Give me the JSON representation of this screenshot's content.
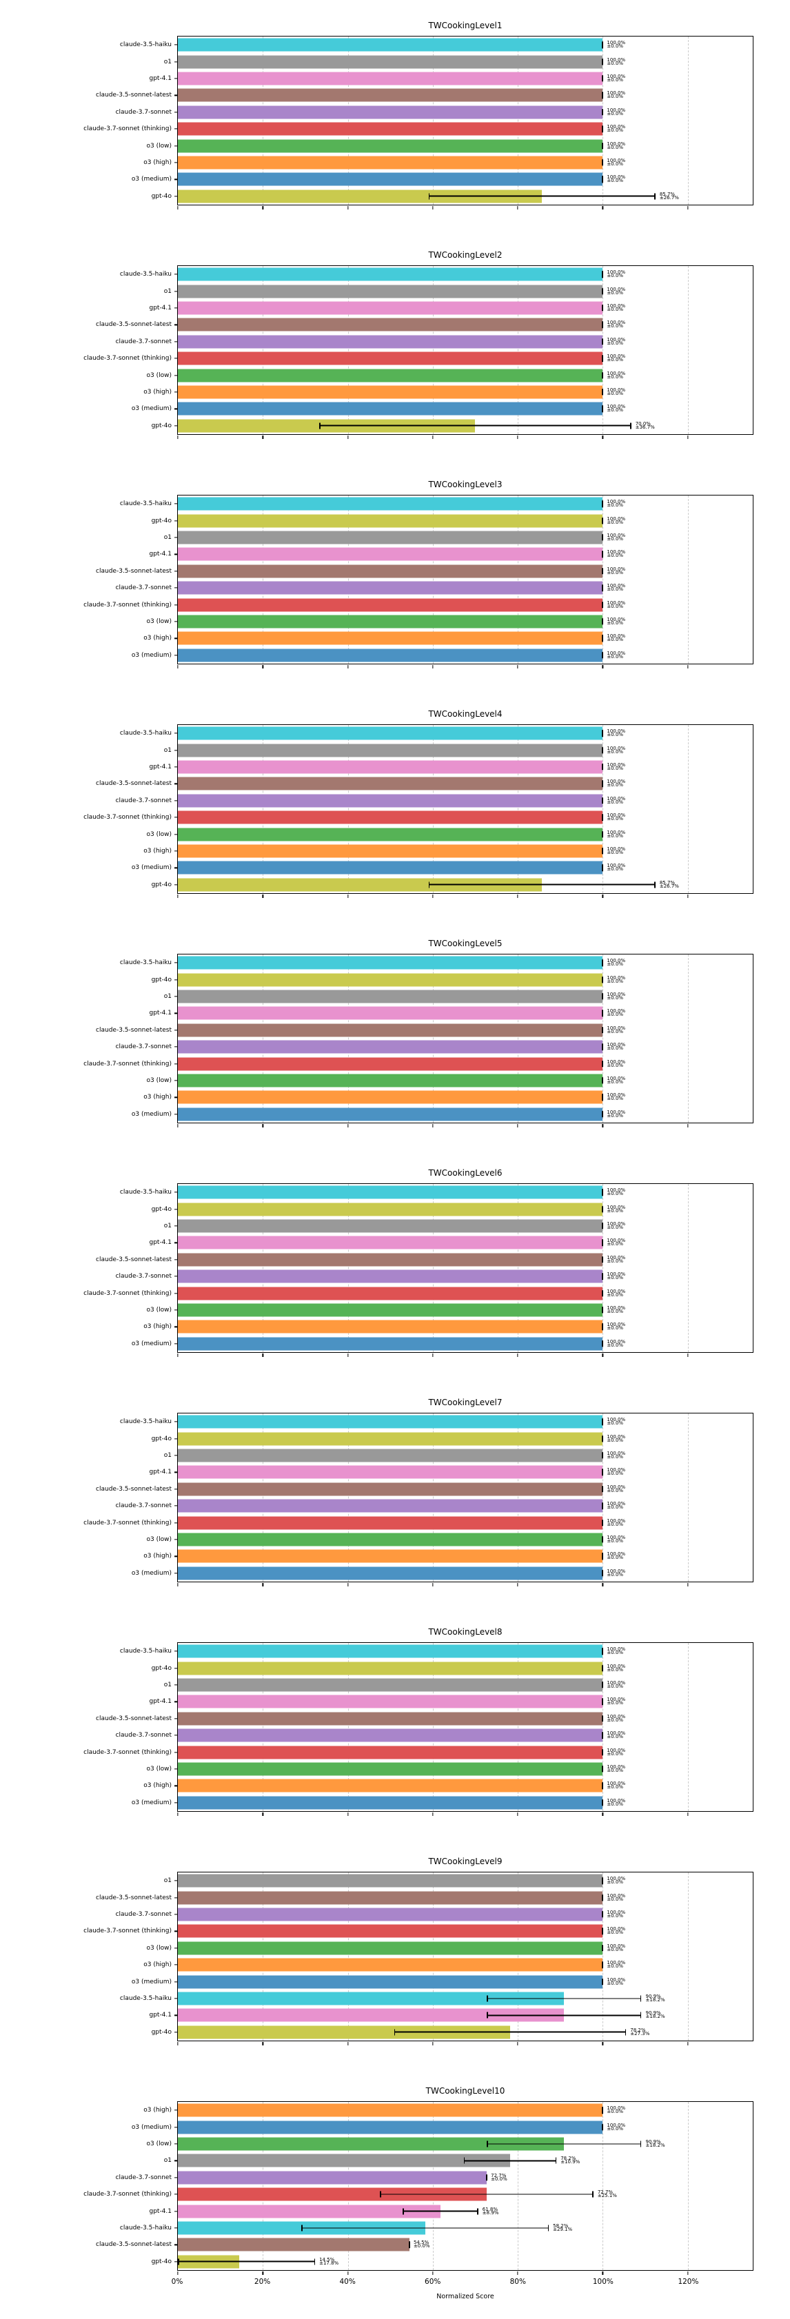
{
  "page": {
    "background": "#ffffff"
  },
  "xaxis": {
    "label": "Normalized Score",
    "tick_labels": [
      "0%",
      "20%",
      "40%",
      "60%",
      "80%",
      "100%",
      "120%"
    ],
    "tick_values": [
      0,
      20,
      40,
      60,
      80,
      100,
      120
    ],
    "max": 135.3,
    "grid_color": "#cbcbcb"
  },
  "colors": {
    "claude-3.5-haiku": "#45cbd9",
    "o1": "#999999",
    "gpt-4.1": "#e892ce",
    "claude-3.5-sonnet-latest": "#a3786f",
    "claude-3.7-sonnet": "#a985ca",
    "claude-3.7-sonnet (thinking)": "#de5253",
    "o3 (low)": "#56b356",
    "o3 (high)": "#ff993e",
    "o3 (medium)": "#4b92c3",
    "gpt-4o": "#c9ca4e"
  },
  "chart_data": [
    {
      "type": "bar",
      "title": "TWCookingLevel1",
      "xlabel": "Normalized Score",
      "xlim": [
        0,
        135.3
      ],
      "categories": [
        "claude-3.5-haiku",
        "o1",
        "gpt-4.1",
        "claude-3.5-sonnet-latest",
        "claude-3.7-sonnet",
        "claude-3.7-sonnet (thinking)",
        "o3 (low)",
        "o3 (high)",
        "o3 (medium)",
        "gpt-4o"
      ],
      "values": [
        100.0,
        100.0,
        100.0,
        100.0,
        100.0,
        100.0,
        100.0,
        100.0,
        100.0,
        85.7
      ],
      "errors": [
        0.0,
        0.0,
        0.0,
        0.0,
        0.0,
        0.0,
        0.0,
        0.0,
        0.0,
        26.7
      ],
      "value_labels": [
        "100.0%",
        "100.0%",
        "100.0%",
        "100.0%",
        "100.0%",
        "100.0%",
        "100.0%",
        "100.0%",
        "100.0%",
        "85.7%"
      ],
      "error_labels": [
        "±0.0%",
        "±0.0%",
        "±0.0%",
        "±0.0%",
        "±0.0%",
        "±0.0%",
        "±0.0%",
        "±0.0%",
        "±0.0%",
        "±26.7%"
      ]
    },
    {
      "type": "bar",
      "title": "TWCookingLevel2",
      "xlabel": "Normalized Score",
      "xlim": [
        0,
        135.3
      ],
      "categories": [
        "claude-3.5-haiku",
        "o1",
        "gpt-4.1",
        "claude-3.5-sonnet-latest",
        "claude-3.7-sonnet",
        "claude-3.7-sonnet (thinking)",
        "o3 (low)",
        "o3 (high)",
        "o3 (medium)",
        "gpt-4o"
      ],
      "values": [
        100.0,
        100.0,
        100.0,
        100.0,
        100.0,
        100.0,
        100.0,
        100.0,
        100.0,
        70.0
      ],
      "errors": [
        0.0,
        0.0,
        0.0,
        0.0,
        0.0,
        0.0,
        0.0,
        0.0,
        0.0,
        36.7
      ],
      "value_labels": [
        "100.0%",
        "100.0%",
        "100.0%",
        "100.0%",
        "100.0%",
        "100.0%",
        "100.0%",
        "100.0%",
        "100.0%",
        "70.0%"
      ],
      "error_labels": [
        "±0.0%",
        "±0.0%",
        "±0.0%",
        "±0.0%",
        "±0.0%",
        "±0.0%",
        "±0.0%",
        "±0.0%",
        "±0.0%",
        "±36.7%"
      ]
    },
    {
      "type": "bar",
      "title": "TWCookingLevel3",
      "xlabel": "Normalized Score",
      "xlim": [
        0,
        135.3
      ],
      "categories": [
        "claude-3.5-haiku",
        "gpt-4o",
        "o1",
        "gpt-4.1",
        "claude-3.5-sonnet-latest",
        "claude-3.7-sonnet",
        "claude-3.7-sonnet (thinking)",
        "o3 (low)",
        "o3 (high)",
        "o3 (medium)"
      ],
      "values": [
        100.0,
        100.0,
        100.0,
        100.0,
        100.0,
        100.0,
        100.0,
        100.0,
        100.0,
        100.0
      ],
      "errors": [
        0.0,
        0.0,
        0.0,
        0.0,
        0.0,
        0.0,
        0.0,
        0.0,
        0.0,
        0.0
      ],
      "value_labels": [
        "100.0%",
        "100.0%",
        "100.0%",
        "100.0%",
        "100.0%",
        "100.0%",
        "100.0%",
        "100.0%",
        "100.0%",
        "100.0%"
      ],
      "error_labels": [
        "±0.0%",
        "±0.0%",
        "±0.0%",
        "±0.0%",
        "±0.0%",
        "±0.0%",
        "±0.0%",
        "±0.0%",
        "±0.0%",
        "±0.0%"
      ]
    },
    {
      "type": "bar",
      "title": "TWCookingLevel4",
      "xlabel": "Normalized Score",
      "xlim": [
        0,
        135.3
      ],
      "categories": [
        "claude-3.5-haiku",
        "o1",
        "gpt-4.1",
        "claude-3.5-sonnet-latest",
        "claude-3.7-sonnet",
        "claude-3.7-sonnet (thinking)",
        "o3 (low)",
        "o3 (high)",
        "o3 (medium)",
        "gpt-4o"
      ],
      "values": [
        100.0,
        100.0,
        100.0,
        100.0,
        100.0,
        100.0,
        100.0,
        100.0,
        100.0,
        85.7
      ],
      "errors": [
        0.0,
        0.0,
        0.0,
        0.0,
        0.0,
        0.0,
        0.0,
        0.0,
        0.0,
        26.7
      ],
      "value_labels": [
        "100.0%",
        "100.0%",
        "100.0%",
        "100.0%",
        "100.0%",
        "100.0%",
        "100.0%",
        "100.0%",
        "100.0%",
        "85.7%"
      ],
      "error_labels": [
        "±0.0%",
        "±0.0%",
        "±0.0%",
        "±0.0%",
        "±0.0%",
        "±0.0%",
        "±0.0%",
        "±0.0%",
        "±0.0%",
        "±26.7%"
      ]
    },
    {
      "type": "bar",
      "title": "TWCookingLevel5",
      "xlabel": "Normalized Score",
      "xlim": [
        0,
        135.3
      ],
      "categories": [
        "claude-3.5-haiku",
        "gpt-4o",
        "o1",
        "gpt-4.1",
        "claude-3.5-sonnet-latest",
        "claude-3.7-sonnet",
        "claude-3.7-sonnet (thinking)",
        "o3 (low)",
        "o3 (high)",
        "o3 (medium)"
      ],
      "values": [
        100.0,
        100.0,
        100.0,
        100.0,
        100.0,
        100.0,
        100.0,
        100.0,
        100.0,
        100.0
      ],
      "errors": [
        0.0,
        0.0,
        0.0,
        0.0,
        0.0,
        0.0,
        0.0,
        0.0,
        0.0,
        0.0
      ],
      "value_labels": [
        "100.0%",
        "100.0%",
        "100.0%",
        "100.0%",
        "100.0%",
        "100.0%",
        "100.0%",
        "100.0%",
        "100.0%",
        "100.0%"
      ],
      "error_labels": [
        "±0.0%",
        "±0.0%",
        "±0.0%",
        "±0.0%",
        "±0.0%",
        "±0.0%",
        "±0.0%",
        "±0.0%",
        "±0.0%",
        "±0.0%"
      ]
    },
    {
      "type": "bar",
      "title": "TWCookingLevel6",
      "xlabel": "Normalized Score",
      "xlim": [
        0,
        135.3
      ],
      "categories": [
        "claude-3.5-haiku",
        "gpt-4o",
        "o1",
        "gpt-4.1",
        "claude-3.5-sonnet-latest",
        "claude-3.7-sonnet",
        "claude-3.7-sonnet (thinking)",
        "o3 (low)",
        "o3 (high)",
        "o3 (medium)"
      ],
      "values": [
        100.0,
        100.0,
        100.0,
        100.0,
        100.0,
        100.0,
        100.0,
        100.0,
        100.0,
        100.0
      ],
      "errors": [
        0.0,
        0.0,
        0.0,
        0.0,
        0.0,
        0.0,
        0.0,
        0.0,
        0.0,
        0.0
      ],
      "value_labels": [
        "100.0%",
        "100.0%",
        "100.0%",
        "100.0%",
        "100.0%",
        "100.0%",
        "100.0%",
        "100.0%",
        "100.0%",
        "100.0%"
      ],
      "error_labels": [
        "±0.0%",
        "±0.0%",
        "±0.0%",
        "±0.0%",
        "±0.0%",
        "±0.0%",
        "±0.0%",
        "±0.0%",
        "±0.0%",
        "±0.0%"
      ]
    },
    {
      "type": "bar",
      "title": "TWCookingLevel7",
      "xlabel": "Normalized Score",
      "xlim": [
        0,
        135.3
      ],
      "categories": [
        "claude-3.5-haiku",
        "gpt-4o",
        "o1",
        "gpt-4.1",
        "claude-3.5-sonnet-latest",
        "claude-3.7-sonnet",
        "claude-3.7-sonnet (thinking)",
        "o3 (low)",
        "o3 (high)",
        "o3 (medium)"
      ],
      "values": [
        100.0,
        100.0,
        100.0,
        100.0,
        100.0,
        100.0,
        100.0,
        100.0,
        100.0,
        100.0
      ],
      "errors": [
        0.0,
        0.0,
        0.0,
        0.0,
        0.0,
        0.0,
        0.0,
        0.0,
        0.0,
        0.0
      ],
      "value_labels": [
        "100.0%",
        "100.0%",
        "100.0%",
        "100.0%",
        "100.0%",
        "100.0%",
        "100.0%",
        "100.0%",
        "100.0%",
        "100.0%"
      ],
      "error_labels": [
        "±0.0%",
        "±0.0%",
        "±0.0%",
        "±0.0%",
        "±0.0%",
        "±0.0%",
        "±0.0%",
        "±0.0%",
        "±0.0%",
        "±0.0%"
      ]
    },
    {
      "type": "bar",
      "title": "TWCookingLevel8",
      "xlabel": "Normalized Score",
      "xlim": [
        0,
        135.3
      ],
      "categories": [
        "claude-3.5-haiku",
        "gpt-4o",
        "o1",
        "gpt-4.1",
        "claude-3.5-sonnet-latest",
        "claude-3.7-sonnet",
        "claude-3.7-sonnet (thinking)",
        "o3 (low)",
        "o3 (high)",
        "o3 (medium)"
      ],
      "values": [
        100.0,
        100.0,
        100.0,
        100.0,
        100.0,
        100.0,
        100.0,
        100.0,
        100.0,
        100.0
      ],
      "errors": [
        0.0,
        0.0,
        0.0,
        0.0,
        0.0,
        0.0,
        0.0,
        0.0,
        0.0,
        0.0
      ],
      "value_labels": [
        "100.0%",
        "100.0%",
        "100.0%",
        "100.0%",
        "100.0%",
        "100.0%",
        "100.0%",
        "100.0%",
        "100.0%",
        "100.0%"
      ],
      "error_labels": [
        "±0.0%",
        "±0.0%",
        "±0.0%",
        "±0.0%",
        "±0.0%",
        "±0.0%",
        "±0.0%",
        "±0.0%",
        "±0.0%",
        "±0.0%"
      ]
    },
    {
      "type": "bar",
      "title": "TWCookingLevel9",
      "xlabel": "Normalized Score",
      "xlim": [
        0,
        135.3
      ],
      "categories": [
        "o1",
        "claude-3.5-sonnet-latest",
        "claude-3.7-sonnet",
        "claude-3.7-sonnet (thinking)",
        "o3 (low)",
        "o3 (high)",
        "o3 (medium)",
        "claude-3.5-haiku",
        "gpt-4.1",
        "gpt-4o"
      ],
      "values": [
        100.0,
        100.0,
        100.0,
        100.0,
        100.0,
        100.0,
        100.0,
        90.9,
        90.9,
        78.2
      ],
      "errors": [
        0.0,
        0.0,
        0.0,
        0.0,
        0.0,
        0.0,
        0.0,
        18.2,
        18.2,
        27.3
      ],
      "value_labels": [
        "100.0%",
        "100.0%",
        "100.0%",
        "100.0%",
        "100.0%",
        "100.0%",
        "100.0%",
        "90.9%",
        "90.9%",
        "78.2%"
      ],
      "error_labels": [
        "±0.0%",
        "±0.0%",
        "±0.0%",
        "±0.0%",
        "±0.0%",
        "±0.0%",
        "±0.0%",
        "±18.2%",
        "±18.2%",
        "±27.3%"
      ]
    },
    {
      "type": "bar",
      "title": "TWCookingLevel10",
      "xlabel": "Normalized Score",
      "xlim": [
        0,
        135.3
      ],
      "categories": [
        "o3 (high)",
        "o3 (medium)",
        "o3 (low)",
        "o1",
        "claude-3.7-sonnet",
        "claude-3.7-sonnet (thinking)",
        "gpt-4.1",
        "claude-3.5-haiku",
        "claude-3.5-sonnet-latest",
        "gpt-4o"
      ],
      "values": [
        100.0,
        100.0,
        90.9,
        78.2,
        72.7,
        72.7,
        61.8,
        58.2,
        54.5,
        14.5
      ],
      "errors": [
        0.0,
        0.0,
        18.2,
        10.9,
        0.0,
        25.1,
        8.9,
        29.1,
        0.0,
        17.8
      ],
      "value_labels": [
        "100.0%",
        "100.0%",
        "90.9%",
        "78.2%",
        "72.7%",
        "72.7%",
        "61.8%",
        "58.2%",
        "54.5%",
        "14.5%"
      ],
      "error_labels": [
        "±0.0%",
        "±0.0%",
        "±18.2%",
        "±10.9%",
        "±0.0%",
        "±25.1%",
        "±8.9%",
        "±29.1%",
        "±0.0%",
        "±17.8%"
      ]
    }
  ]
}
